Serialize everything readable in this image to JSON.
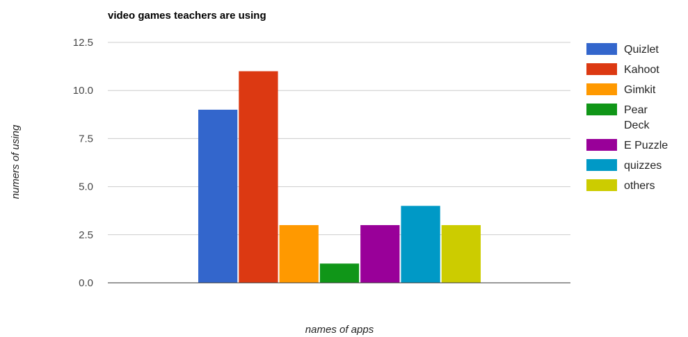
{
  "chart_data": {
    "type": "bar",
    "title": "video games teachers are using",
    "xlabel": "names of apps",
    "ylabel": "numers of using",
    "ylim": [
      0,
      12.5
    ],
    "yticks": [
      "0.0",
      "2.5",
      "5.0",
      "7.5",
      "10.0",
      "12.5"
    ],
    "grid": true,
    "legend_position": "right",
    "series": [
      {
        "name": "Quizlet",
        "values": [
          9
        ],
        "color": "#3366cc"
      },
      {
        "name": "Kahoot",
        "values": [
          11
        ],
        "color": "#dc3912"
      },
      {
        "name": "Gimkit",
        "values": [
          3
        ],
        "color": "#ff9900"
      },
      {
        "name": "Pear Deck",
        "values": [
          1
        ],
        "color": "#109618"
      },
      {
        "name": "E Puzzle",
        "values": [
          3
        ],
        "color": "#990099"
      },
      {
        "name": "quizzes",
        "values": [
          4
        ],
        "color": "#0099c6"
      },
      {
        "name": "others",
        "values": [
          3
        ],
        "color": "#cccc00"
      }
    ]
  }
}
